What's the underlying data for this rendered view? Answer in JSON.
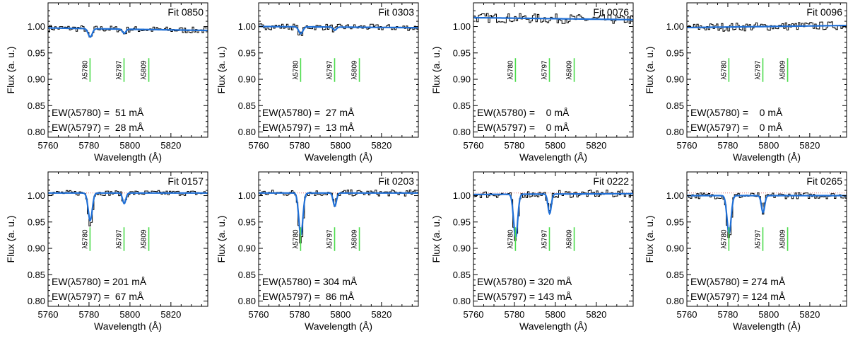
{
  "chart_data": {
    "type": "line",
    "xlabel": "Wavelength (Å)",
    "ylabel": "Flux (a. u.)",
    "xlim": [
      5760,
      5838
    ],
    "ylim": [
      0.79,
      1.045
    ],
    "xticks": [
      5760,
      5780,
      5800,
      5820
    ],
    "yticks": [
      0.8,
      0.85,
      0.9,
      0.95,
      1.0
    ],
    "dib_markers": [
      {
        "label": "λ5780",
        "wavelength": 5780.5
      },
      {
        "label": "λ5797",
        "wavelength": 5797.1
      },
      {
        "label": "λ5809",
        "wavelength": 5809.2
      }
    ],
    "colors": {
      "data": "#000000",
      "fit": "#1f6fd6",
      "markers": "#4ddc4d",
      "continuum": "#e07070"
    },
    "panels": [
      {
        "title": "Fit 0850",
        "ew5780": "EW(λ5780) =  51 mÅ",
        "ew5797": "EW(λ5797) =  28 mÅ",
        "continuum": 0.995,
        "slope": -6e-05,
        "d5780": 0.016,
        "d5797": 0.008,
        "noise": 0.006,
        "reference_line": false
      },
      {
        "title": "Fit 0303",
        "ew5780": "EW(λ5780) =  27 mÅ",
        "ew5797": "EW(λ5797) =  13 mÅ",
        "continuum": 0.999,
        "slope": -3e-05,
        "d5780": 0.013,
        "d5797": 0.006,
        "noise": 0.006,
        "reference_line": false
      },
      {
        "title": "Fit 0076",
        "ew5780": "EW(λ5780) =    0 mÅ",
        "ew5797": "EW(λ5797) =    0 mÅ",
        "continuum": 1.015,
        "slope": -5e-05,
        "d5780": 0.0,
        "d5797": 0.0,
        "noise": 0.009,
        "reference_line": false
      },
      {
        "title": "Fit 0096",
        "ew5780": "EW(λ5780) =    0 mÅ",
        "ew5797": "EW(λ5797) =    0 mÅ",
        "continuum": 1.0,
        "slope": 5e-05,
        "d5780": 0.0,
        "d5797": 0.0,
        "noise": 0.008,
        "reference_line": false
      },
      {
        "title": "Fit 0157",
        "ew5780": "EW(λ5780) = 201 mÅ",
        "ew5797": "EW(λ5797) =  67 mÅ",
        "continuum": 1.005,
        "slope": 0.0,
        "d5780": 0.052,
        "d5797": 0.02,
        "noise": 0.005,
        "reference_line": true
      },
      {
        "title": "Fit 0203",
        "ew5780": "EW(λ5780) = 304 mÅ",
        "ew5797": "EW(λ5797) =  86 mÅ",
        "continuum": 1.005,
        "slope": 0.0,
        "d5780": 0.08,
        "d5797": 0.025,
        "noise": 0.006,
        "reference_line": true
      },
      {
        "title": "Fit 0222",
        "ew5780": "EW(λ5780) = 320 mÅ",
        "ew5797": "EW(λ5797) = 143 mÅ",
        "continuum": 1.003,
        "slope": 2e-05,
        "d5780": 0.082,
        "d5797": 0.037,
        "noise": 0.007,
        "reference_line": true
      },
      {
        "title": "Fit 0265",
        "ew5780": "EW(λ5780) = 274 mÅ",
        "ew5797": "EW(λ5797) = 124 mÅ",
        "continuum": 1.0,
        "slope": 0.0,
        "d5780": 0.072,
        "d5797": 0.032,
        "noise": 0.006,
        "reference_line": true
      }
    ]
  }
}
